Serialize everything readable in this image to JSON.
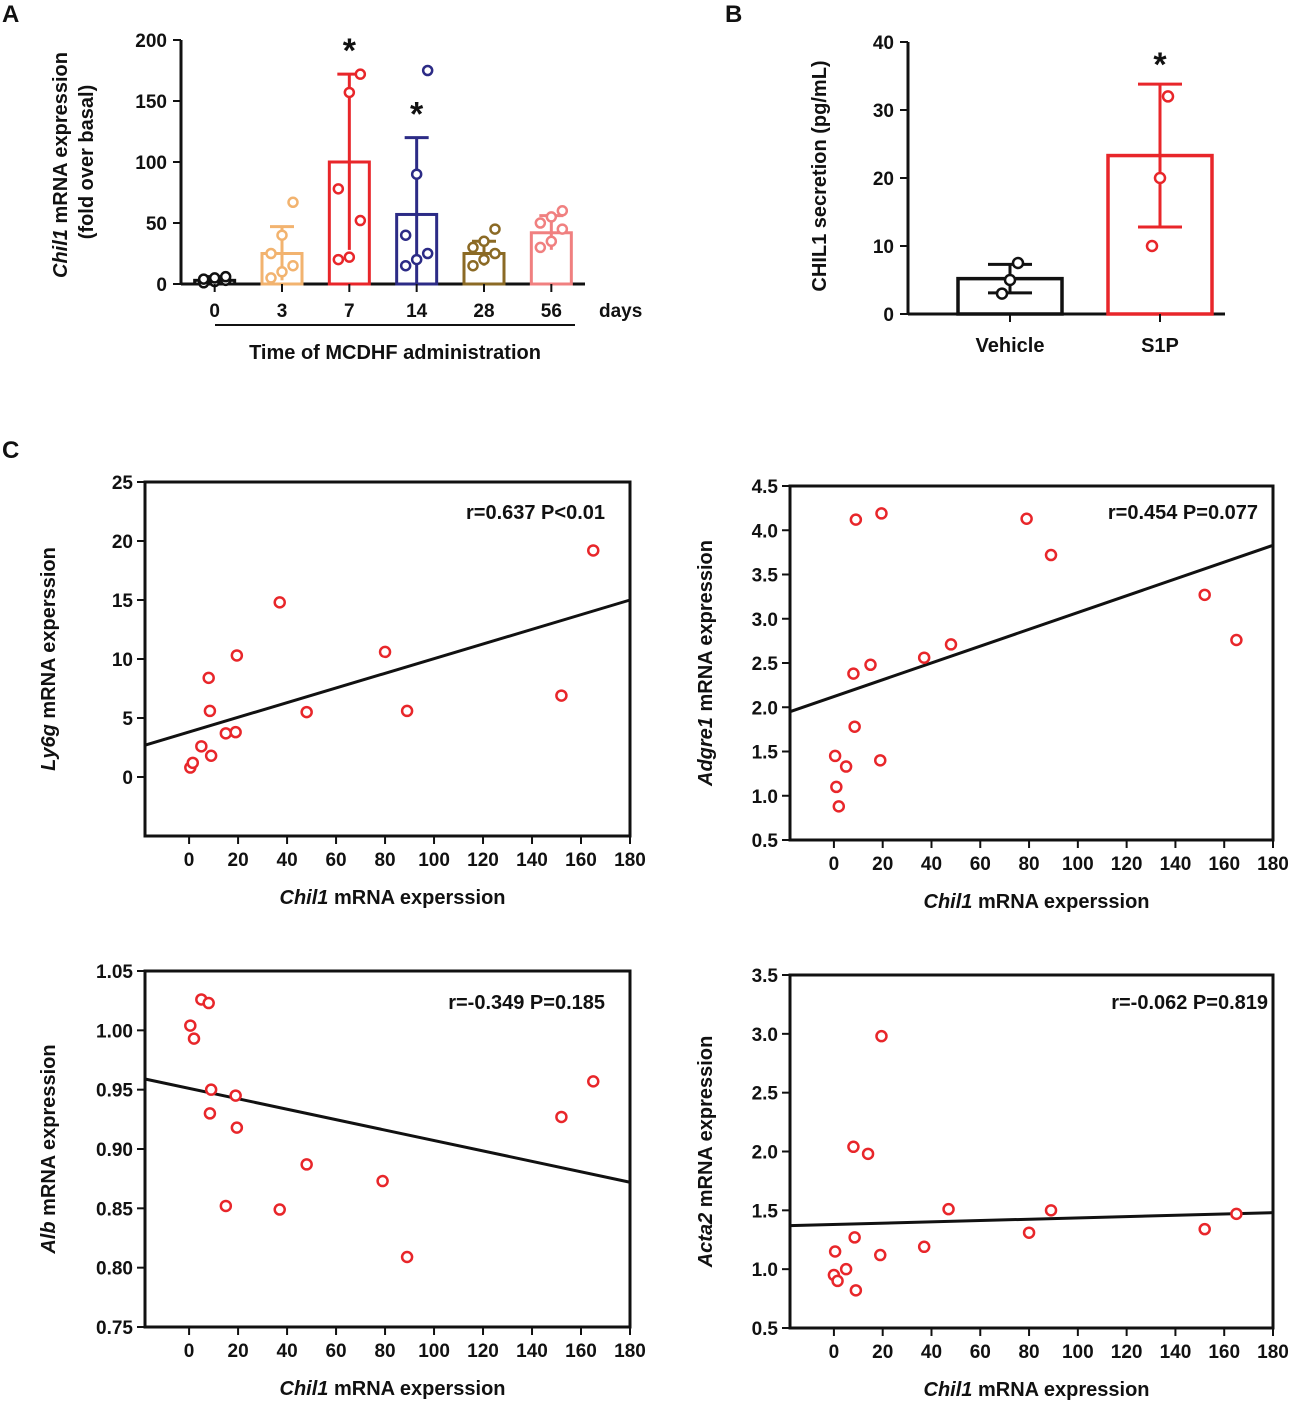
{
  "chart_data": [
    {
      "panel": "A",
      "type": "bar",
      "ylabel_italic": "Chil1",
      "ylabel_rest": " mRNA expression",
      "ylabel2": "(fold over basal)",
      "xlabel": "Time of MCDHF administration",
      "x_unit": "days",
      "ylim": [
        0,
        200
      ],
      "yticks": [
        "0",
        "50",
        "100",
        "150",
        "200"
      ],
      "categories": [
        "0",
        "3",
        "7",
        "14",
        "28",
        "56"
      ],
      "colors": [
        "#111111",
        "#f2b36f",
        "#e8262a",
        "#2c2b86",
        "#8b6a25",
        "#f08080"
      ],
      "means": [
        3,
        25,
        100,
        57,
        25,
        42
      ],
      "sd": [
        3,
        22,
        72,
        63,
        10,
        14
      ],
      "points": [
        [
          1,
          2,
          3,
          4,
          5,
          6
        ],
        [
          5,
          10,
          15,
          25,
          40,
          67
        ],
        [
          20,
          22,
          52,
          78,
          157,
          172
        ],
        [
          15,
          20,
          25,
          40,
          90,
          175
        ],
        [
          15,
          20,
          25,
          30,
          35,
          45
        ],
        [
          30,
          35,
          45,
          50,
          55,
          60
        ]
      ],
      "significance": [
        "",
        "",
        "*",
        "*",
        "",
        ""
      ]
    },
    {
      "panel": "B",
      "type": "bar",
      "ylabel": "CHIL1 secretion (pg/mL)",
      "ylim": [
        0,
        40
      ],
      "yticks": [
        "0",
        "10",
        "20",
        "30",
        "40"
      ],
      "categories": [
        "Vehicle",
        "S1P"
      ],
      "colors": [
        "#111111",
        "#e8262a"
      ],
      "means": [
        5.2,
        23.3
      ],
      "sd": [
        2.1,
        10.5
      ],
      "points": [
        [
          3,
          5,
          7.5
        ],
        [
          10,
          20,
          32
        ]
      ],
      "significance": [
        "",
        "*"
      ]
    },
    {
      "panel": "C",
      "type": "scatter",
      "ylabel_italic": "Ly6g",
      "ylabel_rest": " mRNA experssion",
      "xlabel_italic": "Chil1",
      "xlabel_rest": " mRNA experssion",
      "stats": "r=0.637   P<0.01",
      "xlim": [
        -18,
        180
      ],
      "ylim": [
        -5,
        25
      ],
      "xticks": [
        "0",
        "20",
        "40",
        "60",
        "80",
        "100",
        "120",
        "140",
        "160",
        "180"
      ],
      "yticks": [
        "0",
        "5",
        "10",
        "15",
        "20",
        "25"
      ],
      "line": [
        [
          -18,
          2.7
        ],
        [
          180,
          15.0
        ]
      ],
      "points": [
        [
          0.5,
          0.8
        ],
        [
          1.5,
          1.2
        ],
        [
          5,
          2.6
        ],
        [
          8,
          8.4
        ],
        [
          8.5,
          5.6
        ],
        [
          9,
          1.8
        ],
        [
          15,
          3.7
        ],
        [
          19,
          3.8
        ],
        [
          19.5,
          10.3
        ],
        [
          37,
          14.8
        ],
        [
          48,
          5.5
        ],
        [
          80,
          10.6
        ],
        [
          89,
          5.6
        ],
        [
          152,
          6.9
        ],
        [
          165,
          19.2
        ]
      ]
    },
    {
      "type": "scatter",
      "ylabel_italic": "Adgre1",
      "ylabel_rest": " mRNA expression",
      "xlabel_italic": "Chil1",
      "xlabel_rest": " mRNA experssion",
      "stats": "r=0.454   P=0.077",
      "xlim": [
        -18,
        180
      ],
      "ylim": [
        0.5,
        4.5
      ],
      "xticks": [
        "0",
        "20",
        "40",
        "60",
        "80",
        "100",
        "120",
        "140",
        "160",
        "180"
      ],
      "yticks": [
        "0.5",
        "1.0",
        "1.5",
        "2.0",
        "2.5",
        "3.0",
        "3.5",
        "4.0",
        "4.5"
      ],
      "line": [
        [
          -18,
          1.95
        ],
        [
          180,
          3.83
        ]
      ],
      "points": [
        [
          0.5,
          1.45
        ],
        [
          1,
          1.1
        ],
        [
          2,
          0.88
        ],
        [
          5,
          1.33
        ],
        [
          8,
          2.38
        ],
        [
          8.5,
          1.78
        ],
        [
          9,
          4.12
        ],
        [
          15,
          2.48
        ],
        [
          19,
          1.4
        ],
        [
          19.5,
          4.19
        ],
        [
          37,
          2.56
        ],
        [
          48,
          2.71
        ],
        [
          79,
          4.13
        ],
        [
          89,
          3.72
        ],
        [
          152,
          3.27
        ],
        [
          165,
          2.76
        ]
      ]
    },
    {
      "type": "scatter",
      "ylabel_italic": "Alb",
      "ylabel_rest": " mRNA expression",
      "xlabel_italic": "Chil1",
      "xlabel_rest": " mRNA experssion",
      "stats": "r=-0.349   P=0.185",
      "xlim": [
        -18,
        180
      ],
      "ylim": [
        0.75,
        1.05
      ],
      "xticks": [
        "0",
        "20",
        "40",
        "60",
        "80",
        "100",
        "120",
        "140",
        "160",
        "180"
      ],
      "yticks": [
        "0.75",
        "0.80",
        "0.85",
        "0.90",
        "0.95",
        "1.00",
        "1.05"
      ],
      "line": [
        [
          -18,
          0.959
        ],
        [
          180,
          0.872
        ]
      ],
      "points": [
        [
          0.5,
          1.004
        ],
        [
          2,
          0.993
        ],
        [
          5,
          1.026
        ],
        [
          8,
          1.023
        ],
        [
          8.5,
          0.93
        ],
        [
          9,
          0.95
        ],
        [
          15,
          0.852
        ],
        [
          19,
          0.945
        ],
        [
          19.5,
          0.918
        ],
        [
          37,
          0.849
        ],
        [
          48,
          0.887
        ],
        [
          79,
          0.873
        ],
        [
          89,
          0.809
        ],
        [
          152,
          0.927
        ],
        [
          165,
          0.957
        ]
      ]
    },
    {
      "type": "scatter",
      "ylabel_italic": "Acta2",
      "ylabel_rest": " mRNA expression",
      "xlabel_italic": "Chil1",
      "xlabel_rest": " mRNA expression",
      "stats": "r=-0.062   P=0.819",
      "xlim": [
        -18,
        180
      ],
      "ylim": [
        0.5,
        3.5
      ],
      "xticks": [
        "0",
        "20",
        "40",
        "60",
        "80",
        "100",
        "120",
        "140",
        "160",
        "180"
      ],
      "yticks": [
        "0.5",
        "1.0",
        "1.5",
        "2.0",
        "2.5",
        "3.0",
        "3.5"
      ],
      "line": [
        [
          -18,
          1.37
        ],
        [
          180,
          1.48
        ]
      ],
      "points": [
        [
          0,
          0.95
        ],
        [
          0.5,
          1.15
        ],
        [
          1.5,
          0.9
        ],
        [
          5,
          1.0
        ],
        [
          8,
          2.04
        ],
        [
          8.5,
          1.27
        ],
        [
          9,
          0.82
        ],
        [
          14,
          1.98
        ],
        [
          19,
          1.12
        ],
        [
          19.5,
          2.98
        ],
        [
          37,
          1.19
        ],
        [
          47,
          1.51
        ],
        [
          80,
          1.31
        ],
        [
          89,
          1.5
        ],
        [
          152,
          1.34
        ],
        [
          165,
          1.47
        ]
      ]
    }
  ]
}
